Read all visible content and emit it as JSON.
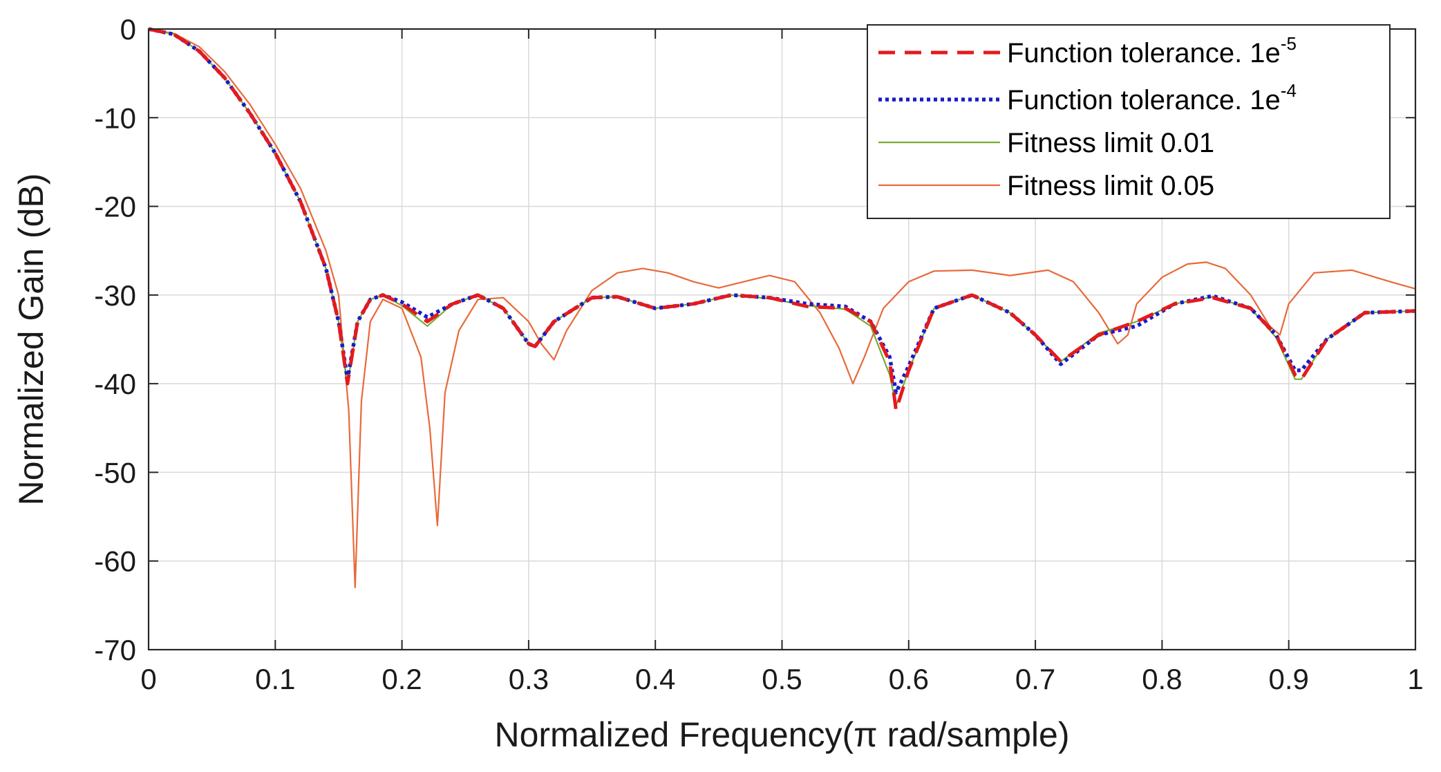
{
  "chart_data": {
    "type": "line",
    "xlabel": "Normalized Frequency(π rad/sample)",
    "ylabel": "Normalized Gain (dB)",
    "xlim": [
      0,
      1
    ],
    "ylim": [
      -70,
      0
    ],
    "grid": true,
    "legend_position": "top-right",
    "x_ticks": [
      0,
      0.1,
      0.2,
      0.3,
      0.4,
      0.5,
      0.6,
      0.7,
      0.8,
      0.9,
      1
    ],
    "x_tick_labels": [
      "0",
      "0.1",
      "0.2",
      "0.3",
      "0.4",
      "0.5",
      "0.6",
      "0.7",
      "0.8",
      "0.9",
      "1"
    ],
    "y_ticks": [
      0,
      -10,
      -20,
      -30,
      -40,
      -50,
      -60,
      -70
    ],
    "y_tick_labels": [
      "0",
      "-10",
      "-20",
      "-30",
      "-40",
      "-50",
      "-60",
      "-70"
    ],
    "series": [
      {
        "name": "Function tolerance. 1e",
        "name_sup": "-5",
        "color": "#e41a1c",
        "style": "dashed",
        "x": [
          0,
          0.02,
          0.04,
          0.06,
          0.08,
          0.1,
          0.12,
          0.14,
          0.15,
          0.157,
          0.165,
          0.175,
          0.185,
          0.2,
          0.22,
          0.24,
          0.26,
          0.28,
          0.3,
          0.305,
          0.32,
          0.35,
          0.37,
          0.4,
          0.43,
          0.46,
          0.49,
          0.52,
          0.55,
          0.57,
          0.585,
          0.59,
          0.6,
          0.62,
          0.65,
          0.68,
          0.7,
          0.72,
          0.75,
          0.78,
          0.81,
          0.84,
          0.87,
          0.89,
          0.905,
          0.91,
          0.93,
          0.96,
          1
        ],
        "y": [
          0,
          -0.6,
          -2.5,
          -5.5,
          -9.5,
          -14,
          -19.5,
          -27,
          -33,
          -40,
          -33,
          -30.5,
          -30,
          -31,
          -33,
          -31,
          -30,
          -31.5,
          -35.5,
          -35.8,
          -33,
          -30.3,
          -30.2,
          -31.5,
          -31,
          -30,
          -30.3,
          -31.3,
          -31.5,
          -33,
          -37.5,
          -43,
          -38.5,
          -31.5,
          -30,
          -32,
          -34.5,
          -37.5,
          -34.5,
          -33,
          -31,
          -30.3,
          -31.5,
          -34.5,
          -39,
          -39.5,
          -35,
          -32,
          -31.8
        ]
      },
      {
        "name": "Function tolerance. 1e",
        "name_sup": "-4",
        "color": "#1a1acc",
        "style": "dotted",
        "x": [
          0,
          0.02,
          0.04,
          0.06,
          0.08,
          0.1,
          0.12,
          0.14,
          0.15,
          0.157,
          0.165,
          0.175,
          0.185,
          0.2,
          0.22,
          0.24,
          0.26,
          0.28,
          0.3,
          0.305,
          0.32,
          0.35,
          0.37,
          0.4,
          0.43,
          0.46,
          0.49,
          0.52,
          0.55,
          0.57,
          0.585,
          0.59,
          0.6,
          0.62,
          0.65,
          0.68,
          0.7,
          0.72,
          0.75,
          0.78,
          0.81,
          0.84,
          0.87,
          0.89,
          0.905,
          0.91,
          0.93,
          0.96,
          1
        ],
        "y": [
          0,
          -0.6,
          -2.5,
          -5.5,
          -9.5,
          -14,
          -19.5,
          -27,
          -33,
          -39.5,
          -33,
          -30.5,
          -30,
          -30.8,
          -32.5,
          -31,
          -30,
          -31.5,
          -35.5,
          -35.8,
          -33,
          -30.3,
          -30.2,
          -31.5,
          -31,
          -30,
          -30.3,
          -31,
          -31.3,
          -33,
          -37,
          -41,
          -38,
          -31.5,
          -30,
          -32,
          -34.5,
          -37.8,
          -34.5,
          -33.5,
          -31,
          -30.1,
          -31.5,
          -34.5,
          -38.5,
          -38.5,
          -35,
          -32,
          -31.8
        ]
      },
      {
        "name": "Fitness limit 0.01",
        "color": "#77ac30",
        "style": "solid",
        "x": [
          0,
          0.02,
          0.04,
          0.06,
          0.08,
          0.1,
          0.12,
          0.14,
          0.15,
          0.157,
          0.165,
          0.175,
          0.185,
          0.2,
          0.22,
          0.24,
          0.26,
          0.28,
          0.3,
          0.305,
          0.32,
          0.35,
          0.37,
          0.4,
          0.43,
          0.46,
          0.49,
          0.52,
          0.55,
          0.57,
          0.585,
          0.59,
          0.6,
          0.62,
          0.65,
          0.68,
          0.7,
          0.72,
          0.75,
          0.78,
          0.81,
          0.84,
          0.87,
          0.89,
          0.905,
          0.91,
          0.93,
          0.96,
          1
        ],
        "y": [
          0,
          -0.6,
          -2.5,
          -5.5,
          -9.5,
          -14,
          -19.5,
          -27,
          -33,
          -40,
          -33,
          -30.5,
          -30,
          -31.2,
          -33.5,
          -31,
          -30,
          -31.5,
          -35.5,
          -35.8,
          -33,
          -30.3,
          -30.2,
          -31.5,
          -31,
          -30,
          -30.4,
          -31.2,
          -31.6,
          -33.5,
          -39,
          -42.5,
          -38.5,
          -31.5,
          -30,
          -32,
          -34.5,
          -37.5,
          -34.3,
          -33,
          -31,
          -30.2,
          -31.5,
          -34.8,
          -39.5,
          -39.5,
          -35,
          -32,
          -31.8
        ]
      },
      {
        "name": "Fitness limit 0.05",
        "color": "#e8693a",
        "style": "solid",
        "x": [
          0,
          0.02,
          0.04,
          0.06,
          0.08,
          0.1,
          0.12,
          0.14,
          0.15,
          0.158,
          0.163,
          0.168,
          0.175,
          0.185,
          0.2,
          0.215,
          0.222,
          0.228,
          0.234,
          0.245,
          0.26,
          0.28,
          0.3,
          0.31,
          0.32,
          0.33,
          0.35,
          0.37,
          0.39,
          0.41,
          0.43,
          0.45,
          0.47,
          0.49,
          0.51,
          0.53,
          0.545,
          0.556,
          0.565,
          0.58,
          0.6,
          0.62,
          0.65,
          0.68,
          0.71,
          0.73,
          0.75,
          0.765,
          0.773,
          0.78,
          0.8,
          0.82,
          0.835,
          0.85,
          0.87,
          0.885,
          0.893,
          0.9,
          0.92,
          0.95,
          0.98,
          1
        ],
        "y": [
          0,
          -0.5,
          -2,
          -4.8,
          -8.5,
          -13,
          -18,
          -25,
          -30,
          -43,
          -63,
          -42,
          -33,
          -30.5,
          -31.5,
          -37,
          -45,
          -56,
          -41,
          -34,
          -30.5,
          -30.3,
          -33,
          -35.5,
          -37.3,
          -34,
          -29.5,
          -27.5,
          -27,
          -27.5,
          -28.5,
          -29.2,
          -28.5,
          -27.8,
          -28.5,
          -32,
          -36,
          -40,
          -37,
          -31.5,
          -28.5,
          -27.3,
          -27.2,
          -27.8,
          -27.2,
          -28.5,
          -32,
          -35.5,
          -34.5,
          -31,
          -28,
          -26.5,
          -26.3,
          -27,
          -30,
          -33.5,
          -34.5,
          -31,
          -27.5,
          -27.2,
          -28.5,
          -29.3
        ]
      }
    ]
  }
}
